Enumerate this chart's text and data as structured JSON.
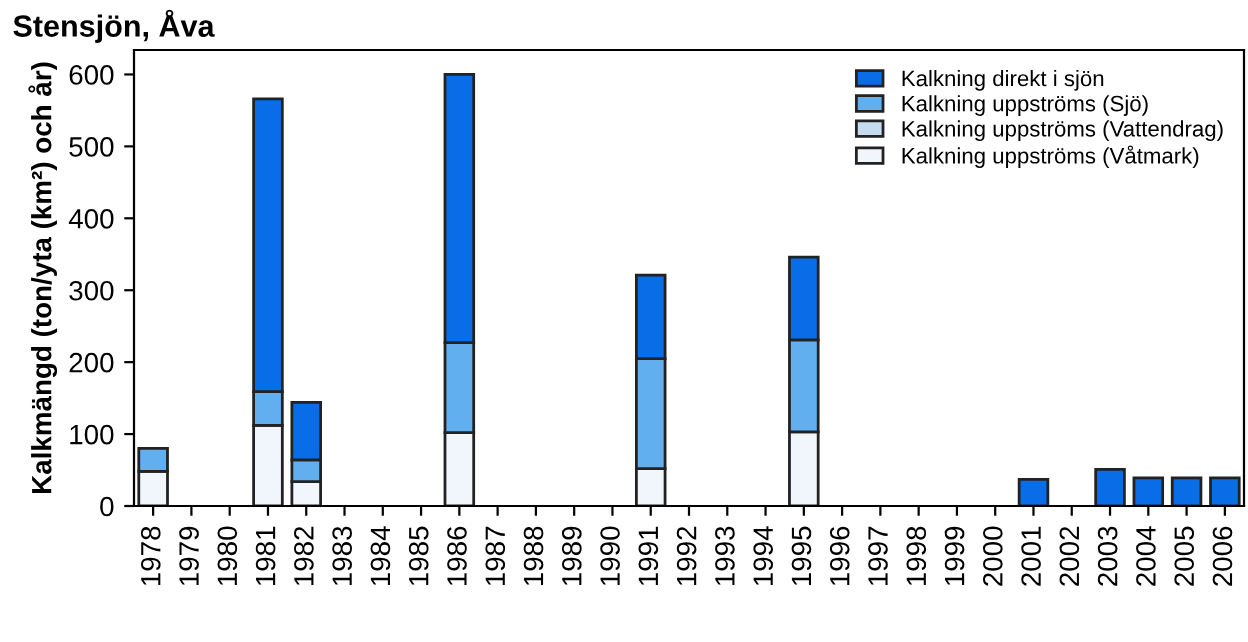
{
  "chart_data": {
    "type": "bar",
    "title": "Stensjön, Åva",
    "ylabel": "Kalkmängd (ton/yta (km²) och år)",
    "categories": [
      "1978",
      "1979",
      "1980",
      "1981",
      "1982",
      "1983",
      "1984",
      "1985",
      "1986",
      "1987",
      "1988",
      "1989",
      "1990",
      "1991",
      "1992",
      "1993",
      "1994",
      "1995",
      "1996",
      "1997",
      "1998",
      "1999",
      "2000",
      "2001",
      "2002",
      "2003",
      "2004",
      "2005",
      "2006"
    ],
    "stacked": true,
    "series": [
      {
        "name": "Kalkning uppströms (Våtmark)",
        "color": "#f0f6fc",
        "values": [
          48,
          null,
          null,
          112,
          34,
          null,
          null,
          null,
          102,
          null,
          null,
          null,
          null,
          52,
          null,
          null,
          null,
          103,
          null,
          null,
          null,
          null,
          null,
          null,
          null,
          null,
          null,
          null,
          null
        ]
      },
      {
        "name": "Kalkning uppströms (Vattendrag)",
        "color": "#c5dcf0",
        "values": [
          null,
          null,
          null,
          null,
          null,
          null,
          null,
          null,
          null,
          null,
          null,
          null,
          null,
          null,
          null,
          null,
          null,
          null,
          null,
          null,
          null,
          null,
          null,
          null,
          null,
          null,
          null,
          null,
          null
        ]
      },
      {
        "name": "Kalkning uppströms (Sjö)",
        "color": "#62aff0",
        "values": [
          32,
          null,
          null,
          47,
          30,
          null,
          null,
          null,
          125,
          null,
          null,
          null,
          null,
          153,
          null,
          null,
          null,
          128,
          null,
          null,
          null,
          null,
          null,
          null,
          null,
          null,
          null,
          null,
          null
        ]
      },
      {
        "name": "Kalkning direkt i sjön",
        "color": "#0a6de8",
        "values": [
          null,
          null,
          null,
          407,
          80,
          null,
          null,
          null,
          373,
          null,
          null,
          null,
          null,
          116,
          null,
          null,
          null,
          115,
          null,
          null,
          null,
          null,
          null,
          37,
          null,
          51,
          39,
          39,
          39
        ]
      }
    ],
    "ylim": [
      0,
      634
    ],
    "yticks": [
      0,
      100,
      200,
      300,
      400,
      500,
      600
    ],
    "grid": false,
    "legend": "top right"
  }
}
